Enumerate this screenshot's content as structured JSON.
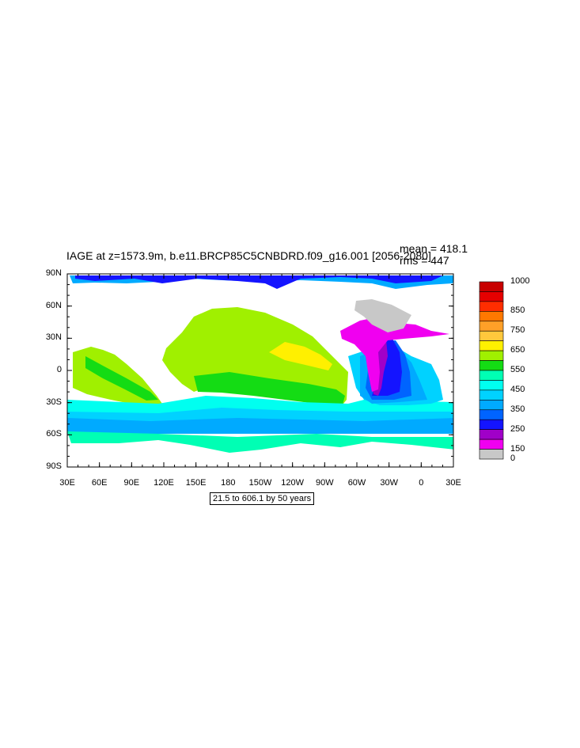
{
  "title": "IAGE at z=1573.9m, b.e11.BRCP85C5CNBDRD.f09_g16.001 [2056-2080]",
  "stats": {
    "mean": "mean = 418.1",
    "rms": "rms = 447"
  },
  "lat_labels": [
    "90N",
    "60N",
    "30N",
    "0",
    "30S",
    "60S",
    "90S"
  ],
  "lon_labels": [
    "30E",
    "60E",
    "90E",
    "120E",
    "150E",
    "180",
    "150W",
    "120W",
    "90W",
    "60W",
    "30W",
    "0",
    "30E"
  ],
  "range_text": "21.5 to 606.1 by 50 years",
  "colorbar": {
    "labels": [
      "1000",
      "850",
      "750",
      "650",
      "550",
      "450",
      "350",
      "250",
      "150",
      "0"
    ],
    "colors": [
      "#c80000",
      "#e60000",
      "#ff2d00",
      "#ff7800",
      "#ffa028",
      "#ffc83c",
      "#fff000",
      "#a0f000",
      "#14dc14",
      "#00ffb4",
      "#00fff0",
      "#00d2ff",
      "#00aaff",
      "#0064ff",
      "#1414ff",
      "#a000c8",
      "#f000f0",
      "#c8c8c8"
    ]
  },
  "colors": {
    "yellowgreen": "#a0f000",
    "green": "#14dc14",
    "yellow": "#fff000",
    "aquamarine": "#00ffb4",
    "cyan": "#00fff0",
    "lightblue": "#00d2ff",
    "skyblue": "#00aaff",
    "blue": "#0064ff",
    "darkblue": "#1414ff",
    "purple": "#a000c8",
    "magenta": "#f000f0",
    "gray": "#c8c8c8"
  }
}
